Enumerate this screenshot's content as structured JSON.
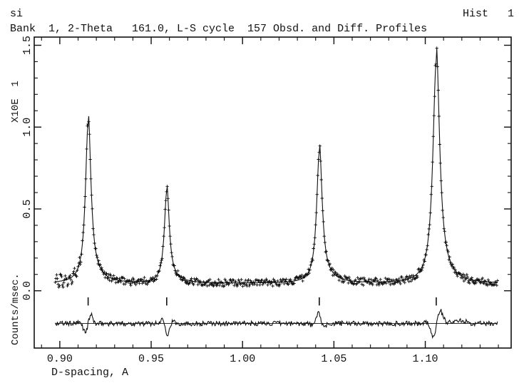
{
  "header": {
    "left_top": "si",
    "right_top": "Hist   1",
    "subtitle": "Bank  1, 2-Theta   161.0, L-S cycle  157 Obsd. and Diff. Profiles"
  },
  "chart_data": {
    "type": "line",
    "xlabel": "D-spacing, A",
    "ylabel": "Counts/msec.",
    "yscale_label": "X10E  1",
    "xlim": [
      0.886,
      1.147
    ],
    "ylim": [
      -0.35,
      1.55
    ],
    "xticks": [
      0.9,
      0.95,
      1.0,
      1.05,
      1.1
    ],
    "xtick_labels": [
      "0.90",
      "0.95",
      "1.00",
      "1.05",
      "1.10"
    ],
    "yticks": [
      0.0,
      0.5,
      1.0,
      1.5
    ],
    "ytick_labels": [
      "0.0",
      "0.5",
      "1.0",
      "1.5"
    ],
    "background": 0.045,
    "diff_offset": -0.2,
    "peaks": [
      {
        "x": 0.9155,
        "height": 1.06,
        "width": 0.0018
      },
      {
        "x": 0.9585,
        "height": 0.61,
        "width": 0.0016
      },
      {
        "x": 1.042,
        "height": 0.87,
        "width": 0.0018
      },
      {
        "x": 1.106,
        "height": 1.47,
        "width": 0.0022
      }
    ],
    "reflection_markers": [
      0.9155,
      0.9585,
      1.042,
      1.106
    ],
    "series": [
      {
        "name": "Obsd.",
        "style": "plus-markers",
        "color": "#111111"
      },
      {
        "name": "Calc.",
        "style": "line",
        "color": "#111111"
      },
      {
        "name": "Diff.",
        "style": "line",
        "color": "#111111"
      }
    ]
  }
}
